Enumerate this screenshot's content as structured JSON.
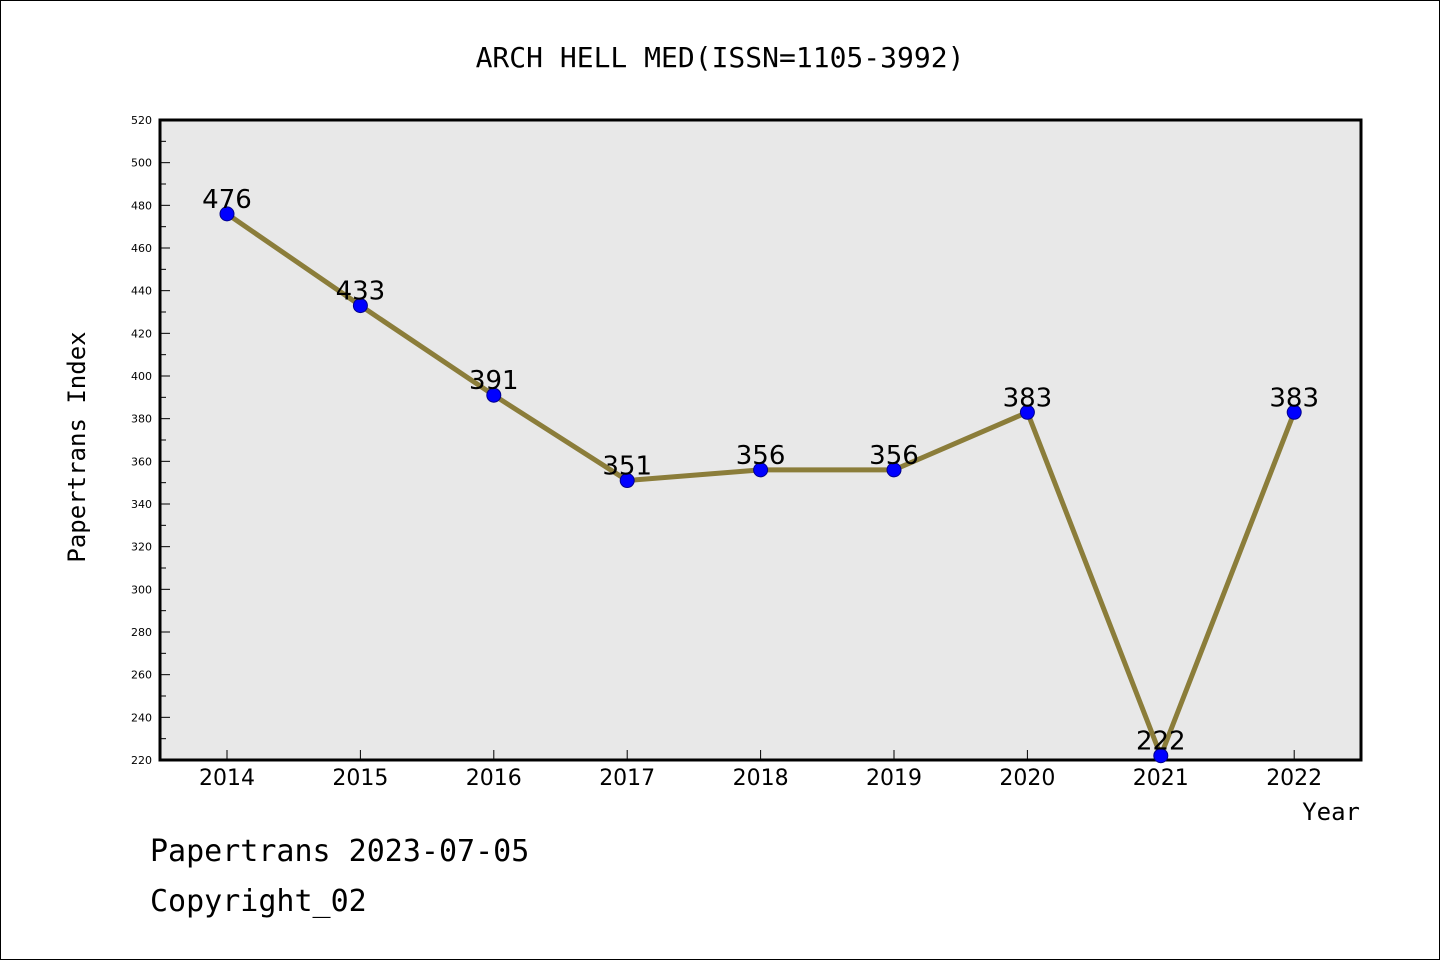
{
  "chart_data": {
    "type": "line",
    "title": "ARCH HELL MED(ISSN=1105-3992)",
    "xlabel": "Year",
    "ylabel": "Papertrans Index",
    "x": [
      "2014",
      "2015",
      "2016",
      "2017",
      "2018",
      "2019",
      "2020",
      "2021",
      "2022"
    ],
    "series": [
      {
        "values": [
          476,
          433,
          391,
          351,
          356,
          356,
          383,
          222,
          383
        ]
      }
    ],
    "data_labels": [
      "476",
      "433",
      "391",
      "351",
      "356",
      "356",
      "383",
      "222",
      "383"
    ],
    "ylim": [
      220,
      520
    ],
    "y_ticks": [
      "220",
      "240",
      "260",
      "280",
      "300",
      "320",
      "340",
      "360",
      "380",
      "400",
      "420",
      "440",
      "460",
      "480",
      "500",
      "520"
    ],
    "grid": false,
    "legend": "none",
    "colors": {
      "line": "#8b7d3a",
      "marker": "#0000ff",
      "plot_background": "#e8e8e8"
    }
  },
  "footer": {
    "line1": "Papertrans 2023-07-05",
    "line2": "Copyright_02"
  }
}
